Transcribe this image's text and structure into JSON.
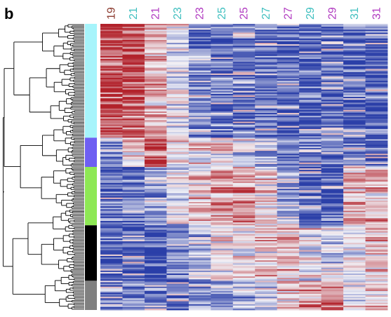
{
  "panel_label": "b",
  "chart_data": {
    "type": "heatmap",
    "title": "",
    "xlabel": "",
    "ylabel": "",
    "columns": [
      {
        "label": "19",
        "color": "#8b3a2e"
      },
      {
        "label": "21",
        "color": "#3fbfbf"
      },
      {
        "label": "21",
        "color": "#b03ac0"
      },
      {
        "label": "23",
        "color": "#3fbfbf"
      },
      {
        "label": "23",
        "color": "#b03ac0"
      },
      {
        "label": "25",
        "color": "#3fbfbf"
      },
      {
        "label": "25",
        "color": "#b03ac0"
      },
      {
        "label": "27",
        "color": "#3fbfbf"
      },
      {
        "label": "27",
        "color": "#b03ac0"
      },
      {
        "label": "29",
        "color": "#3fbfbf"
      },
      {
        "label": "29",
        "color": "#b03ac0"
      },
      {
        "label": "31",
        "color": "#3fbfbf"
      },
      {
        "label": "31",
        "color": "#b03ac0"
      }
    ],
    "color_scale": {
      "low": "#2b3fa8",
      "mid": "#f2f2f7",
      "high": "#b2222b"
    },
    "row_clusters": [
      {
        "color": "#a6f4fb",
        "rows": 78,
        "profile": [
          0.9,
          0.8,
          0.3,
          -0.1,
          -0.6,
          -0.7,
          -0.7,
          -0.7,
          -0.8,
          -0.8,
          -0.8,
          -0.8,
          -0.8
        ]
      },
      {
        "color": "#6e5ff2",
        "rows": 20,
        "profile": [
          -0.5,
          0.3,
          0.8,
          0.2,
          0.1,
          0.1,
          -0.1,
          -0.3,
          -0.6,
          -0.7,
          -0.7,
          -0.8,
          -0.8
        ]
      },
      {
        "color": "#8ee854",
        "rows": 40,
        "profile": [
          -0.8,
          -0.7,
          -0.4,
          -0.1,
          0.2,
          0.4,
          0.5,
          0.1,
          -0.5,
          -0.8,
          -0.8,
          0.2,
          0.3
        ]
      },
      {
        "color": "#000000",
        "rows": 38,
        "profile": [
          -0.8,
          -0.8,
          -0.8,
          -0.6,
          -0.3,
          0.0,
          0.1,
          0.2,
          0.3,
          0.0,
          -0.2,
          0.0,
          0.3
        ]
      },
      {
        "color": "#808080",
        "rows": 20,
        "profile": [
          -0.7,
          -0.7,
          -0.7,
          -0.7,
          -0.5,
          -0.5,
          -0.3,
          -0.1,
          0.2,
          0.5,
          0.6,
          0.0,
          0.2
        ]
      }
    ]
  }
}
